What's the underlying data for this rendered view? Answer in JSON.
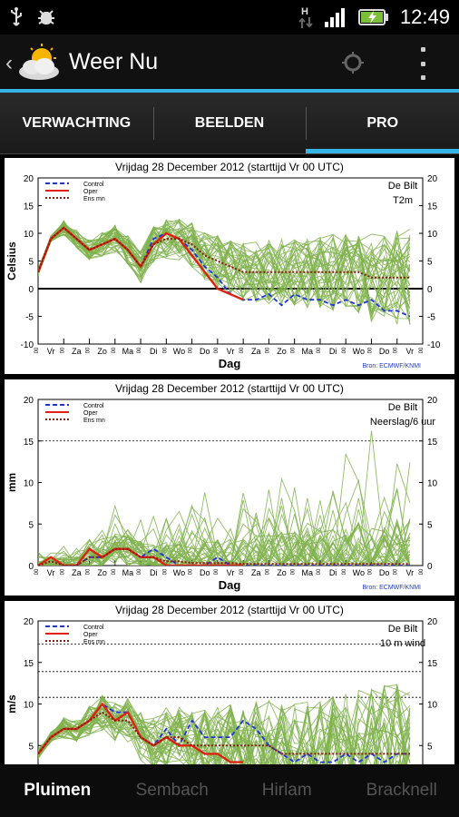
{
  "status_bar": {
    "time": "12:49",
    "icons": [
      "usb-icon",
      "debug-icon",
      "hsdpa-icon",
      "signal-icon",
      "battery-icon"
    ]
  },
  "action_bar": {
    "title": "Weer Nu",
    "icons": [
      "back-chevron-icon",
      "weather-cloud-sun-icon",
      "compass-icon",
      "overflow-menu-icon"
    ]
  },
  "tabs": [
    {
      "label": "VERWACHTING",
      "active": false
    },
    {
      "label": "BEELDEN",
      "active": false
    },
    {
      "label": "PRO",
      "active": true
    }
  ],
  "bottom_nav": [
    {
      "label": "Pluimen",
      "active": true
    },
    {
      "label": "Sembach",
      "active": false
    },
    {
      "label": "Hirlam",
      "active": false
    },
    {
      "label": "Bracknell",
      "active": false
    }
  ],
  "colors": {
    "accent": "#33b5e5",
    "control": "#2233dd",
    "oper": "#dd2211",
    "ens": "#8b1a10",
    "members": "#7fb24c"
  },
  "legend": {
    "control": "Control",
    "oper": "Oper",
    "ens": "Ens mn"
  },
  "xlabel": "Dag",
  "source": "Bron: ECMWF/KNMI",
  "day_labels": [
    "Vr",
    "Za",
    "Zo",
    "Ma",
    "Di",
    "Wo",
    "Do",
    "Vr",
    "Za",
    "Zo",
    "Ma",
    "Di",
    "Wo",
    "Do",
    "Vr"
  ],
  "chart_data": [
    {
      "type": "line",
      "title": "Vrijdag   28 December 2012   (starttijd  Vr 00 UTC)",
      "location": "De Bilt",
      "variable": "T2m",
      "ylabel": "Celsius",
      "ylim": [
        -10,
        20
      ],
      "yticks": [
        -10,
        -5,
        0,
        5,
        10,
        15,
        20
      ],
      "reference_lines": [
        0
      ],
      "x_days": [
        0,
        0.5,
        1,
        1.5,
        2,
        2.5,
        3,
        3.5,
        4,
        4.5,
        5,
        5.5,
        6,
        6.5,
        7,
        7.5,
        8,
        8.5,
        9,
        9.5,
        10,
        10.5,
        11,
        11.5,
        12,
        12.5,
        13,
        13.5,
        14,
        14.5
      ],
      "series": [
        {
          "name": "Control",
          "values": [
            3,
            9,
            11,
            9,
            7,
            8,
            9,
            7,
            4,
            9,
            10,
            9,
            7,
            4,
            2,
            -1,
            -2,
            -2,
            -1,
            -3,
            -1,
            -2,
            -2,
            -3,
            -2,
            -3,
            -2,
            -4,
            -4,
            -5
          ]
        },
        {
          "name": "Oper",
          "values": [
            3,
            9,
            11,
            9,
            7,
            8,
            9,
            7,
            4,
            8,
            10,
            9,
            6,
            3,
            0,
            -1,
            -2,
            null,
            null,
            null,
            null,
            null,
            null,
            null,
            null,
            null,
            null,
            null,
            null,
            null
          ]
        },
        {
          "name": "Ens mn",
          "values": [
            3,
            9,
            11,
            9,
            7,
            8,
            9,
            7,
            4,
            8,
            9,
            9,
            8,
            6,
            5,
            4,
            3,
            3,
            3,
            3,
            3,
            3,
            3,
            3,
            3,
            3,
            2,
            2,
            2,
            2
          ]
        }
      ]
    },
    {
      "type": "line",
      "title": "Vrijdag   28 December 2012   (starttijd  Vr 00 UTC)",
      "location": "De Bilt",
      "variable": "Neerslag/6 uur",
      "ylabel": "mm",
      "ylim": [
        0,
        20
      ],
      "yticks": [
        0,
        5,
        10,
        15,
        20
      ],
      "reference_lines": [
        15
      ],
      "x_days": [
        0,
        0.5,
        1,
        1.5,
        2,
        2.5,
        3,
        3.5,
        4,
        4.5,
        5,
        5.5,
        6,
        6.5,
        7,
        7.5,
        8,
        8.5,
        9,
        9.5,
        10,
        10.5,
        11,
        11.5,
        12,
        12.5,
        13,
        13.5,
        14,
        14.5
      ],
      "series": [
        {
          "name": "Control",
          "values": [
            0,
            1,
            0,
            0,
            1,
            1,
            2,
            2,
            1,
            2,
            1,
            0,
            0,
            0,
            1,
            0,
            0,
            0,
            0,
            0,
            0,
            0,
            0,
            0,
            0,
            0,
            0,
            0,
            0,
            0
          ]
        },
        {
          "name": "Oper",
          "values": [
            0,
            1,
            0,
            0,
            2,
            1,
            2,
            2,
            1,
            1,
            0,
            0,
            0,
            0,
            0,
            0,
            0,
            null,
            null,
            null,
            null,
            null,
            null,
            null,
            null,
            null,
            null,
            null,
            null,
            null
          ]
        },
        {
          "name": "Ens mn",
          "values": [
            0,
            0.5,
            0,
            0,
            1,
            1,
            2,
            2,
            1,
            1,
            0.5,
            0.5,
            0.3,
            0.3,
            0.3,
            0.3,
            0.2,
            0.2,
            0.2,
            0.2,
            0.2,
            0.2,
            0.2,
            0.2,
            0.2,
            0.2,
            0.2,
            0.2,
            0.2,
            0.2
          ]
        }
      ]
    },
    {
      "type": "line",
      "title": "Vrijdag   28 December 2012   (starttijd  Vr 00 UTC)",
      "location": "De Bilt",
      "variable": "10 m wind",
      "ylabel": "m/s",
      "ylim": [
        0,
        20
      ],
      "yticks": [
        5,
        10,
        15,
        20
      ],
      "reference_lines": [
        17.2,
        13.9,
        10.8
      ],
      "x_days": [
        0,
        0.5,
        1,
        1.5,
        2,
        2.5,
        3,
        3.5,
        4,
        4.5,
        5,
        5.5,
        6,
        6.5,
        7,
        7.5,
        8,
        8.5,
        9,
        9.5,
        10,
        10.5,
        11,
        11.5,
        12,
        12.5,
        13,
        13.5,
        14,
        14.5
      ],
      "series": [
        {
          "name": "Control",
          "values": [
            4,
            6,
            7,
            7,
            8,
            10,
            9,
            9,
            6,
            5,
            7,
            5,
            8,
            6,
            6,
            6,
            8,
            7,
            5,
            4,
            3,
            4,
            3,
            3,
            4,
            3,
            4,
            3,
            4,
            4
          ]
        },
        {
          "name": "Oper",
          "values": [
            4,
            6,
            7,
            7,
            8,
            10,
            8,
            9,
            6,
            5,
            6,
            5,
            5,
            4,
            4,
            3,
            3,
            null,
            null,
            null,
            null,
            null,
            null,
            null,
            null,
            null,
            null,
            null,
            null,
            null
          ]
        },
        {
          "name": "Ens mn",
          "values": [
            4,
            6,
            7,
            7,
            8,
            9,
            8,
            8,
            6,
            5,
            6,
            6,
            5,
            5,
            5,
            5,
            5,
            5,
            5,
            4,
            4,
            4,
            4,
            4,
            4,
            4,
            4,
            4,
            4,
            4
          ]
        }
      ]
    }
  ]
}
